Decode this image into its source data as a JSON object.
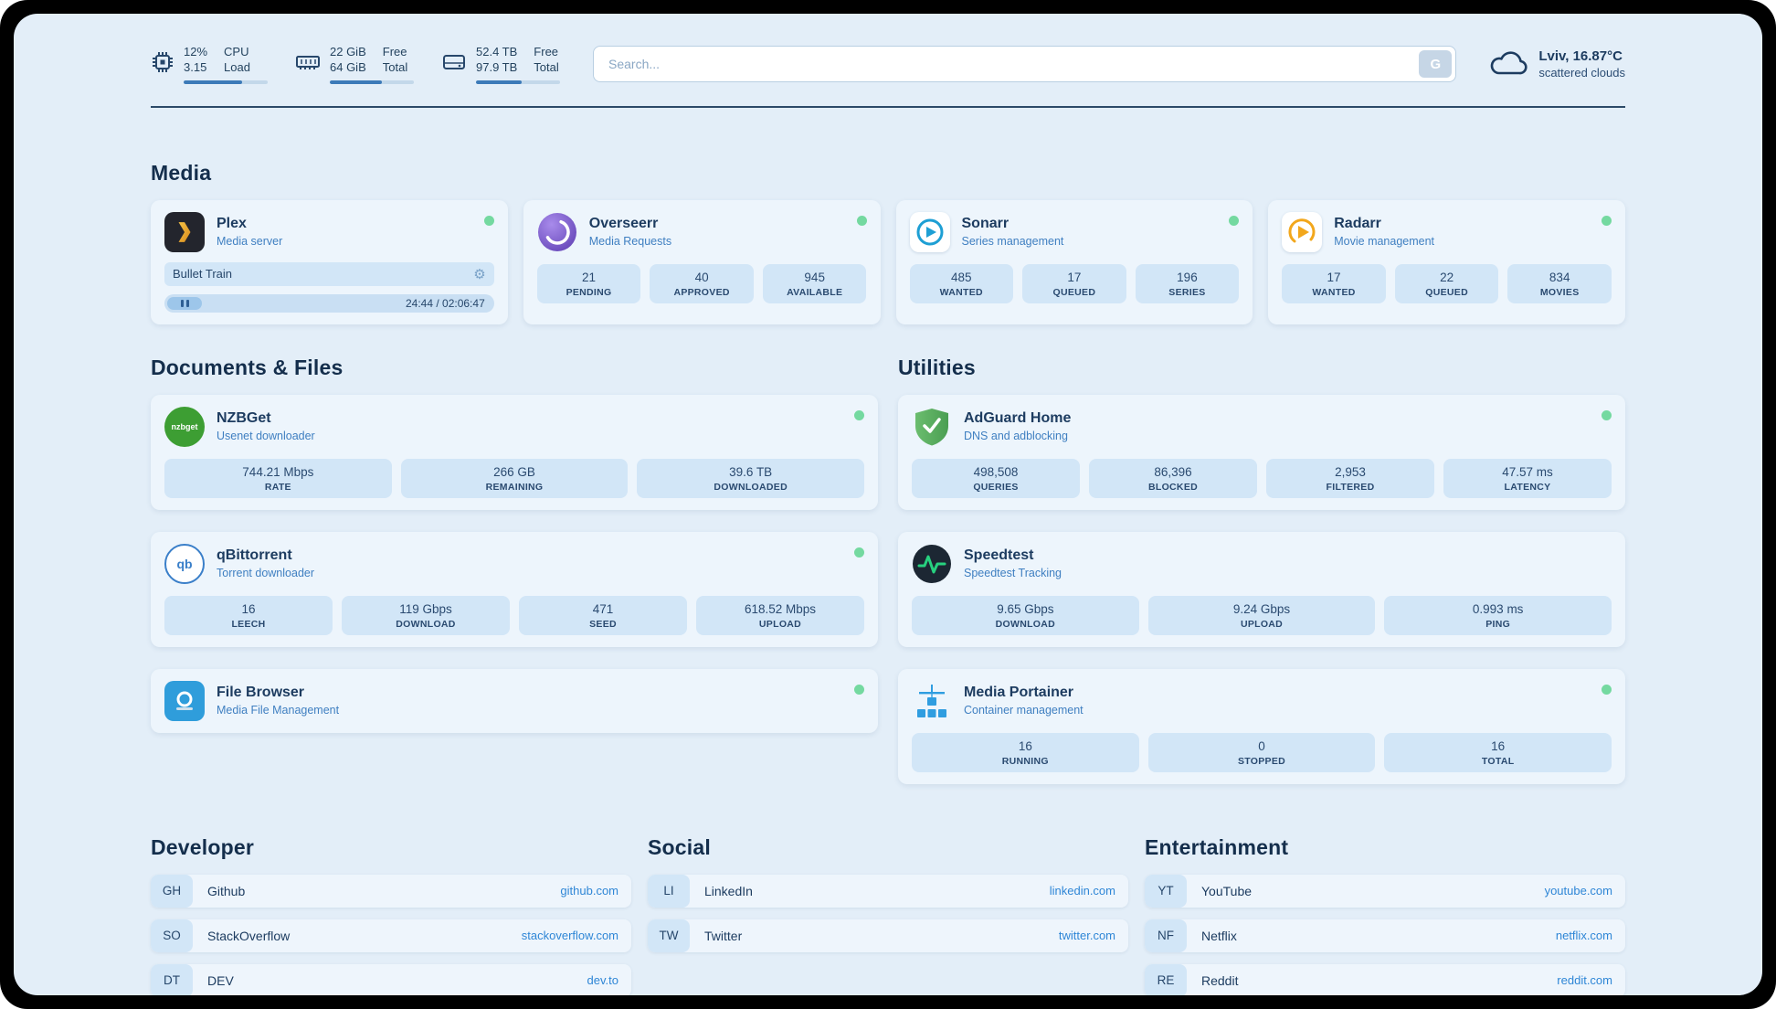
{
  "colors": {
    "page_bg": "#e3eef8",
    "card_bg": "#edf5fc",
    "stat_box_bg": "#d2e6f7",
    "text_dark": "#1d3c60",
    "subtitle_blue": "#3f7fc1",
    "link_blue": "#2e86d6",
    "status_green": "#74d9a0",
    "progress_blue": "#3c7ab8"
  },
  "topbar": {
    "cpu": {
      "value_top": "12%",
      "value_bottom": "3.15",
      "label_top": "CPU",
      "label_bottom": "Load",
      "progress": 70
    },
    "memory": {
      "value_top": "22 GiB",
      "value_bottom": "64 GiB",
      "label_top": "Free",
      "label_bottom": "Total",
      "progress": 62
    },
    "disk": {
      "value_top": "52.4 TB",
      "value_bottom": "97.9 TB",
      "label_top": "Free",
      "label_bottom": "Total",
      "progress": 54
    },
    "search": {
      "placeholder": "Search...",
      "button_label": "G"
    },
    "weather": {
      "location": "Lviv, 16.87°C",
      "condition": "scattered clouds"
    }
  },
  "sections": {
    "media": "Media",
    "documents": "Documents & Files",
    "utilities": "Utilities"
  },
  "services": {
    "plex": {
      "name": "Plex",
      "subtitle": "Media server",
      "now_playing": "Bullet Train",
      "time": "24:44 / 02:06:47"
    },
    "overseerr": {
      "name": "Overseerr",
      "subtitle": "Media Requests",
      "stats": [
        {
          "value": "21",
          "label": "PENDING"
        },
        {
          "value": "40",
          "label": "APPROVED"
        },
        {
          "value": "945",
          "label": "AVAILABLE"
        }
      ]
    },
    "sonarr": {
      "name": "Sonarr",
      "subtitle": "Series management",
      "stats": [
        {
          "value": "485",
          "label": "WANTED"
        },
        {
          "value": "17",
          "label": "QUEUED"
        },
        {
          "value": "196",
          "label": "SERIES"
        }
      ]
    },
    "radarr": {
      "name": "Radarr",
      "subtitle": "Movie management",
      "stats": [
        {
          "value": "17",
          "label": "WANTED"
        },
        {
          "value": "22",
          "label": "QUEUED"
        },
        {
          "value": "834",
          "label": "MOVIES"
        }
      ]
    },
    "nzbget": {
      "name": "NZBGet",
      "subtitle": "Usenet downloader",
      "stats": [
        {
          "value": "744.21 Mbps",
          "label": "RATE"
        },
        {
          "value": "266 GB",
          "label": "REMAINING"
        },
        {
          "value": "39.6 TB",
          "label": "DOWNLOADED"
        }
      ]
    },
    "qbittorrent": {
      "name": "qBittorrent",
      "subtitle": "Torrent downloader",
      "stats": [
        {
          "value": "16",
          "label": "LEECH"
        },
        {
          "value": "119 Gbps",
          "label": "DOWNLOAD"
        },
        {
          "value": "471",
          "label": "SEED"
        },
        {
          "value": "618.52 Mbps",
          "label": "UPLOAD"
        }
      ]
    },
    "filebrowser": {
      "name": "File Browser",
      "subtitle": "Media File Management"
    },
    "adguard": {
      "name": "AdGuard Home",
      "subtitle": "DNS and adblocking",
      "stats": [
        {
          "value": "498,508",
          "label": "QUERIES"
        },
        {
          "value": "86,396",
          "label": "BLOCKED"
        },
        {
          "value": "2,953",
          "label": "FILTERED"
        },
        {
          "value": "47.57 ms",
          "label": "LATENCY"
        }
      ]
    },
    "speedtest": {
      "name": "Speedtest",
      "subtitle": "Speedtest Tracking",
      "stats": [
        {
          "value": "9.65 Gbps",
          "label": "DOWNLOAD"
        },
        {
          "value": "9.24 Gbps",
          "label": "UPLOAD"
        },
        {
          "value": "0.993 ms",
          "label": "PING"
        }
      ]
    },
    "portainer": {
      "name": "Media Portainer",
      "subtitle": "Container management",
      "stats": [
        {
          "value": "16",
          "label": "RUNNING"
        },
        {
          "value": "0",
          "label": "STOPPED"
        },
        {
          "value": "16",
          "label": "TOTAL"
        }
      ]
    }
  },
  "bookmarks": {
    "developer": {
      "title": "Developer",
      "items": [
        {
          "abbr": "GH",
          "name": "Github",
          "url": "github.com"
        },
        {
          "abbr": "SO",
          "name": "StackOverflow",
          "url": "stackoverflow.com"
        },
        {
          "abbr": "DT",
          "name": "DEV",
          "url": "dev.to"
        }
      ]
    },
    "social": {
      "title": "Social",
      "items": [
        {
          "abbr": "LI",
          "name": "LinkedIn",
          "url": "linkedin.com"
        },
        {
          "abbr": "TW",
          "name": "Twitter",
          "url": "twitter.com"
        }
      ]
    },
    "entertainment": {
      "title": "Entertainment",
      "items": [
        {
          "abbr": "YT",
          "name": "YouTube",
          "url": "youtube.com"
        },
        {
          "abbr": "NF",
          "name": "Netflix",
          "url": "netflix.com"
        },
        {
          "abbr": "RE",
          "name": "Reddit",
          "url": "reddit.com"
        }
      ]
    }
  },
  "icons": {
    "gear": "⚙",
    "nzbget_label": "nzbget",
    "qbittorrent_label": "qb"
  }
}
